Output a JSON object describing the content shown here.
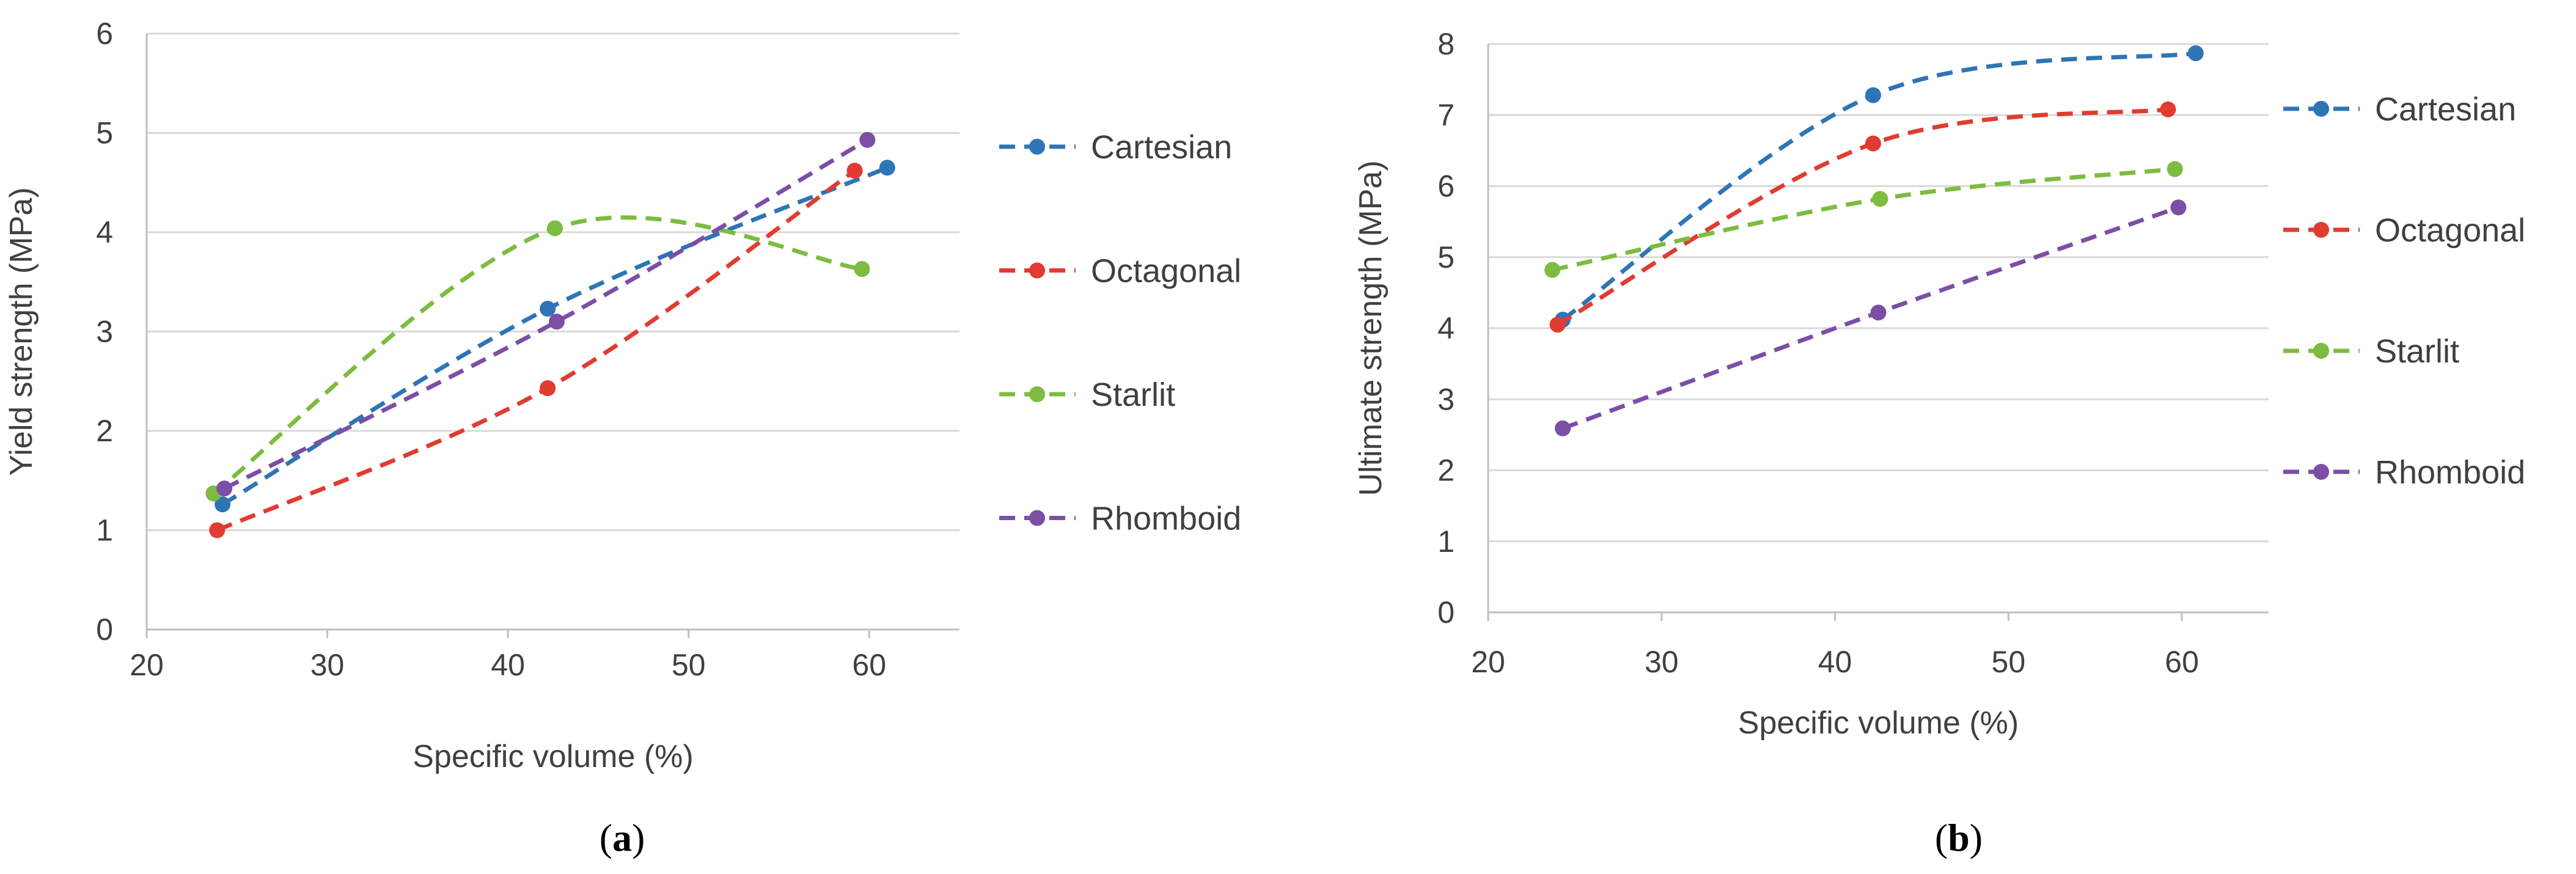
{
  "chart_data": [
    {
      "type": "line",
      "panel_label": "a",
      "xlabel": "Specific volume (%)",
      "ylabel": "Yield strength (MPa)",
      "xlim": [
        20,
        65
      ],
      "ylim": [
        0,
        6
      ],
      "xticks": [
        20,
        30,
        40,
        50,
        60
      ],
      "yticks": [
        0,
        1,
        2,
        3,
        4,
        5,
        6
      ],
      "grid": "horizontal",
      "legend_position": "right",
      "series": [
        {
          "name": "Cartesian",
          "color": "#2e75b6",
          "x": [
            24.2,
            42.2,
            61.0
          ],
          "y": [
            1.26,
            3.23,
            4.65
          ]
        },
        {
          "name": "Octagonal",
          "color": "#e03c31",
          "x": [
            23.9,
            42.2,
            59.2
          ],
          "y": [
            1.0,
            2.43,
            4.62
          ]
        },
        {
          "name": "Starlit",
          "color": "#7cbc40",
          "x": [
            23.7,
            42.6,
            59.6
          ],
          "y": [
            1.37,
            4.04,
            3.63
          ]
        },
        {
          "name": "Rhomboid",
          "color": "#7b4fa6",
          "x": [
            24.3,
            42.7,
            59.9
          ],
          "y": [
            1.42,
            3.1,
            4.93
          ]
        }
      ]
    },
    {
      "type": "line",
      "panel_label": "b",
      "xlabel": "Specific volume (%)",
      "ylabel": "Ultimate strength (MPa)",
      "xlim": [
        20,
        65
      ],
      "ylim": [
        0,
        8
      ],
      "xticks": [
        20,
        30,
        40,
        50,
        60
      ],
      "yticks": [
        0,
        1,
        2,
        3,
        4,
        5,
        6,
        7,
        8
      ],
      "grid": "horizontal",
      "legend_position": "right",
      "series": [
        {
          "name": "Cartesian",
          "color": "#2e75b6",
          "x": [
            24.3,
            42.2,
            60.8
          ],
          "y": [
            4.12,
            7.28,
            7.87
          ]
        },
        {
          "name": "Octagonal",
          "color": "#e03c31",
          "x": [
            24.0,
            42.2,
            59.2
          ],
          "y": [
            4.05,
            6.6,
            7.08
          ]
        },
        {
          "name": "Starlit",
          "color": "#7cbc40",
          "x": [
            23.7,
            42.6,
            59.6
          ],
          "y": [
            4.82,
            5.82,
            6.24
          ]
        },
        {
          "name": "Rhomboid",
          "color": "#7b4fa6",
          "x": [
            24.3,
            42.5,
            59.8
          ],
          "y": [
            2.59,
            4.22,
            5.7
          ]
        }
      ]
    }
  ]
}
